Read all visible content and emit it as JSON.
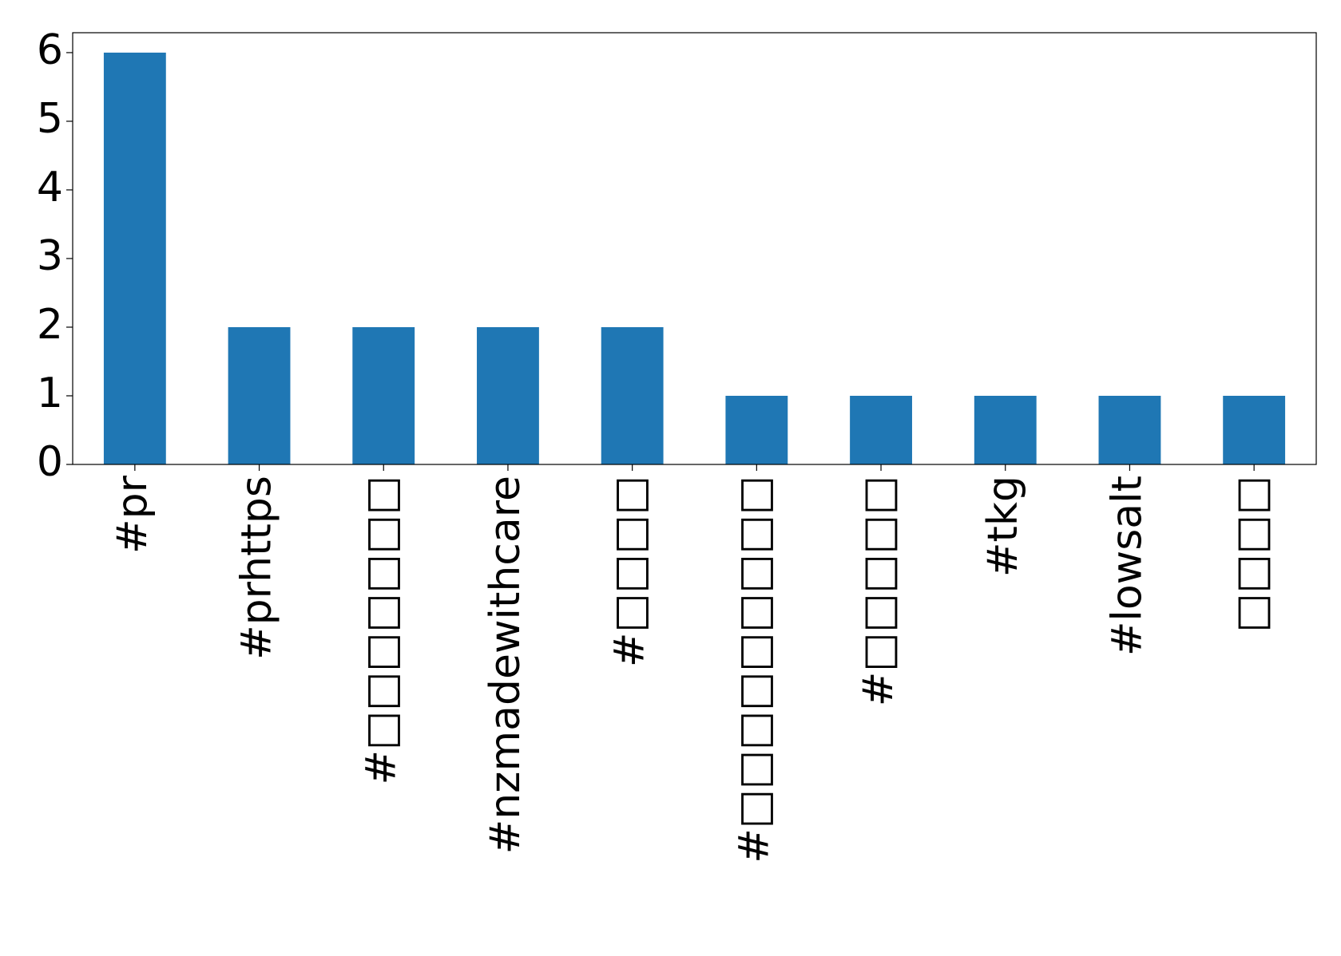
{
  "chart_data": {
    "type": "bar",
    "categories": [
      "#pr",
      "#prhttps",
      "#□□□□□□□",
      "#nzmadewithcare",
      "#□□□□",
      "#□□□□□□□□□",
      "#□□□□□",
      "#tkg",
      "#lowsalt",
      "□□□□"
    ],
    "values": [
      6,
      2,
      2,
      2,
      2,
      1,
      1,
      1,
      1,
      1
    ],
    "color": "#1f77b4",
    "ylim": [
      0,
      6.29
    ],
    "yticks": [
      0,
      1,
      2,
      3,
      4,
      5,
      6
    ],
    "grid": false
  }
}
